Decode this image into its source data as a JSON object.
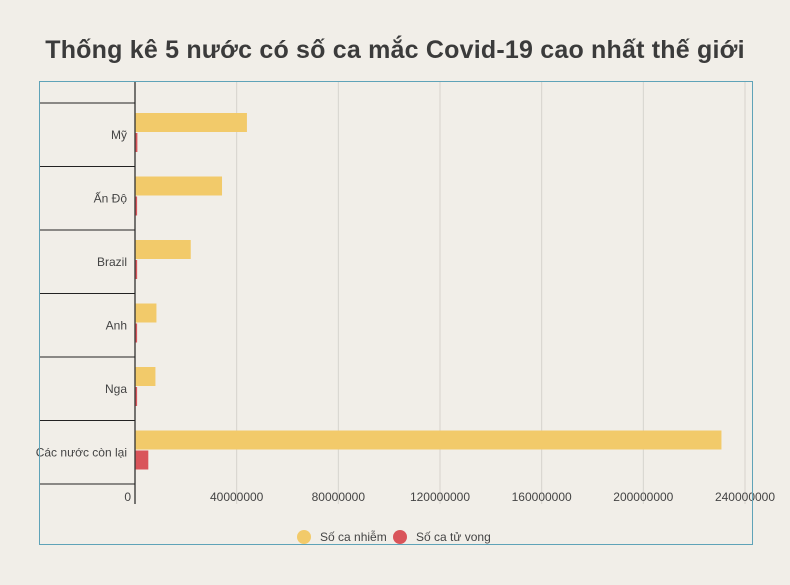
{
  "chart_data": {
    "type": "bar",
    "orientation": "horizontal",
    "title": "Thống kê 5 nước có số ca mắc Covid-19 cao nhất thế giới",
    "categories": [
      "Mỹ",
      "Ấn Độ",
      "Brazil",
      "Anh",
      "Nga",
      "Các nước còn lại"
    ],
    "series": [
      {
        "name": "Số ca nhiễm",
        "color": "#f2ca6a",
        "values": [
          43800000,
          34000000,
          21700000,
          8200000,
          7800000,
          230500000
        ]
      },
      {
        "name": "Số ca tử vong",
        "color": "#d9545a",
        "values": [
          705000,
          453000,
          605000,
          140000,
          220000,
          5000000
        ]
      }
    ],
    "xlim": [
      0,
      240000000
    ],
    "xticks": [
      0,
      40000000,
      80000000,
      120000000,
      160000000,
      200000000,
      240000000
    ],
    "xtick_labels": [
      "0",
      "40000000",
      "80000000",
      "120000000",
      "160000000",
      "200000000",
      "240000000"
    ],
    "grid": true,
    "legend_position": "bottom-center"
  }
}
